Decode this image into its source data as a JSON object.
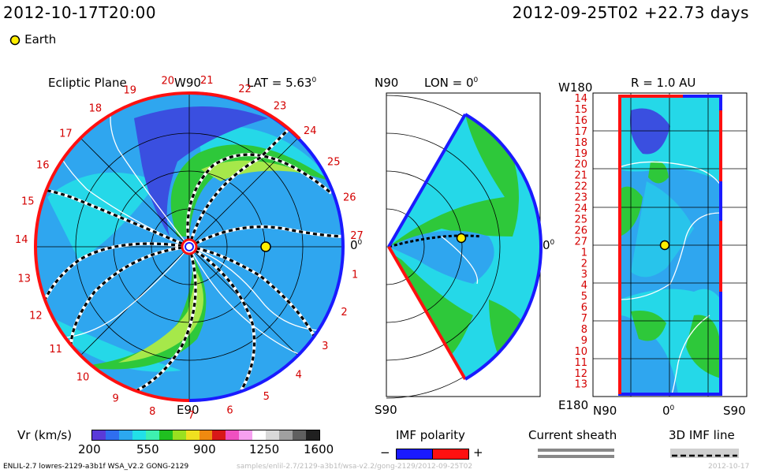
{
  "header": {
    "datetime": "2012-10-17T20:00",
    "reference": "2012-09-25T02 +22.73 days"
  },
  "legend": {
    "earth_label": "Earth",
    "earth_color": "#ffee00"
  },
  "ecliptic": {
    "title": "Ecliptic Plane",
    "top_label": "W90",
    "bottom_label": "E90",
    "lat_label": "LAT = 5.63",
    "lat_sup": "0",
    "zero_label": "0",
    "zero_sup": "0",
    "carrington": [
      "1",
      "2",
      "3",
      "4",
      "5",
      "6",
      "7",
      "8",
      "9",
      "10",
      "11",
      "12",
      "13",
      "14",
      "15",
      "16",
      "17",
      "18",
      "19",
      "20",
      "21",
      "22",
      "23",
      "24",
      "25",
      "26",
      "27"
    ]
  },
  "meridional": {
    "top_label": "N90",
    "lon_label": "LON = 0",
    "lon_sup": "0",
    "zero_label": "0",
    "zero_sup": "0",
    "bottom_label": "S90"
  },
  "sphere": {
    "r_label": "R = 1.0 AU",
    "top_left": "W180",
    "bottom_left": "E180",
    "bottom_n": "N90",
    "bottom_zero": "0",
    "bottom_zero_sup": "0",
    "bottom_s": "S90",
    "rows": [
      "14",
      "15",
      "16",
      "17",
      "18",
      "19",
      "20",
      "21",
      "22",
      "23",
      "24",
      "25",
      "26",
      "27",
      "1",
      "2",
      "3",
      "4",
      "5",
      "6",
      "7",
      "8",
      "9",
      "10",
      "11",
      "12",
      "13"
    ]
  },
  "colorbar": {
    "label": "Vr (km/s)",
    "ticks": [
      "200",
      "550",
      "900",
      "1250",
      "1600"
    ],
    "colors": [
      "#5a3ad8",
      "#2f6ef0",
      "#2ca8f0",
      "#22e0e8",
      "#3ef0b0",
      "#20c020",
      "#9ae020",
      "#f0e020",
      "#f08a10",
      "#d81818",
      "#f050c0",
      "#f6a0f0",
      "#ffffff",
      "#d8d8d8",
      "#a0a0a0",
      "#606060",
      "#202020"
    ]
  },
  "imf": {
    "label": "IMF polarity",
    "minus": "−",
    "plus": "+",
    "neg_color": "#1a1aff",
    "pos_color": "#ff1010"
  },
  "sheath": {
    "label": "Current sheath"
  },
  "imf3d": {
    "label": "3D IMF line"
  },
  "footer": {
    "run": "ENLIL-2.7 lowres-2129-a3b1f WSA_V2.2 GONG-2129",
    "path": "samples/enlil-2.7/2129-a3b1f/wsa-v2.2/gong-2129/2012-09-25T02",
    "right": "2012-10-17"
  }
}
